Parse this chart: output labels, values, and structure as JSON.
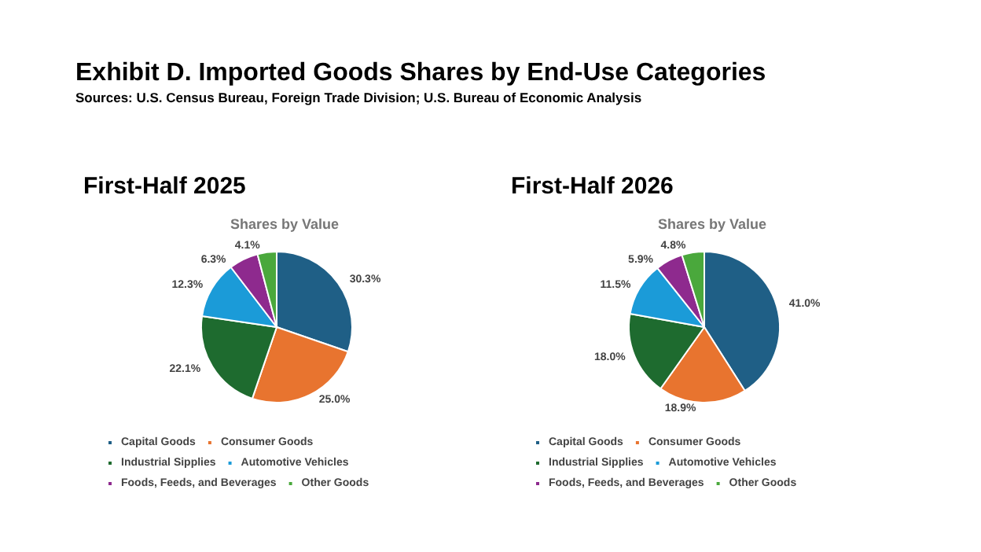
{
  "chart_data": [
    {
      "type": "pie",
      "title": "First-Half 2025",
      "subtitle": "Shares by Value",
      "annotations": [
        "Exhibit D. Imported Goods Shares by End-Use Categories",
        "Sources: U.S. Census Bureau, Foreign Trade Division; U.S. Bureau of Economic Analysis"
      ],
      "categories": [
        "Capital Goods",
        "Consumer Goods",
        "Industrial Sipplies",
        "Automotive Vehicles",
        "Foods, Feeds, and Beverages",
        "Other Goods"
      ],
      "values": [
        30.3,
        25.0,
        22.1,
        12.3,
        6.3,
        4.1
      ],
      "value_labels": [
        "30.3%",
        "25.0%",
        "22.1%",
        "12.3%",
        "6.3%",
        "4.1%"
      ],
      "colors": [
        "#1f5f86",
        "#e8742f",
        "#1e6b2f",
        "#1b9bd8",
        "#8e2a8e",
        "#4aa83c"
      ],
      "legend": "bottom"
    },
    {
      "type": "pie",
      "title": "First-Half 2026",
      "subtitle": "Shares by Value",
      "categories": [
        "Capital Goods",
        "Consumer Goods",
        "Industrial Sipplies",
        "Automotive Vehicles",
        "Foods, Feeds, and Beverages",
        "Other Goods"
      ],
      "values": [
        41.0,
        18.9,
        18.0,
        11.5,
        5.9,
        4.8
      ],
      "value_labels": [
        "41.0%",
        "18.9%",
        "18.0%",
        "11.5%",
        "5.9%",
        "4.8%"
      ],
      "colors": [
        "#1f5f86",
        "#e8742f",
        "#1e6b2f",
        "#1b9bd8",
        "#8e2a8e",
        "#4aa83c"
      ],
      "legend": "bottom"
    }
  ]
}
